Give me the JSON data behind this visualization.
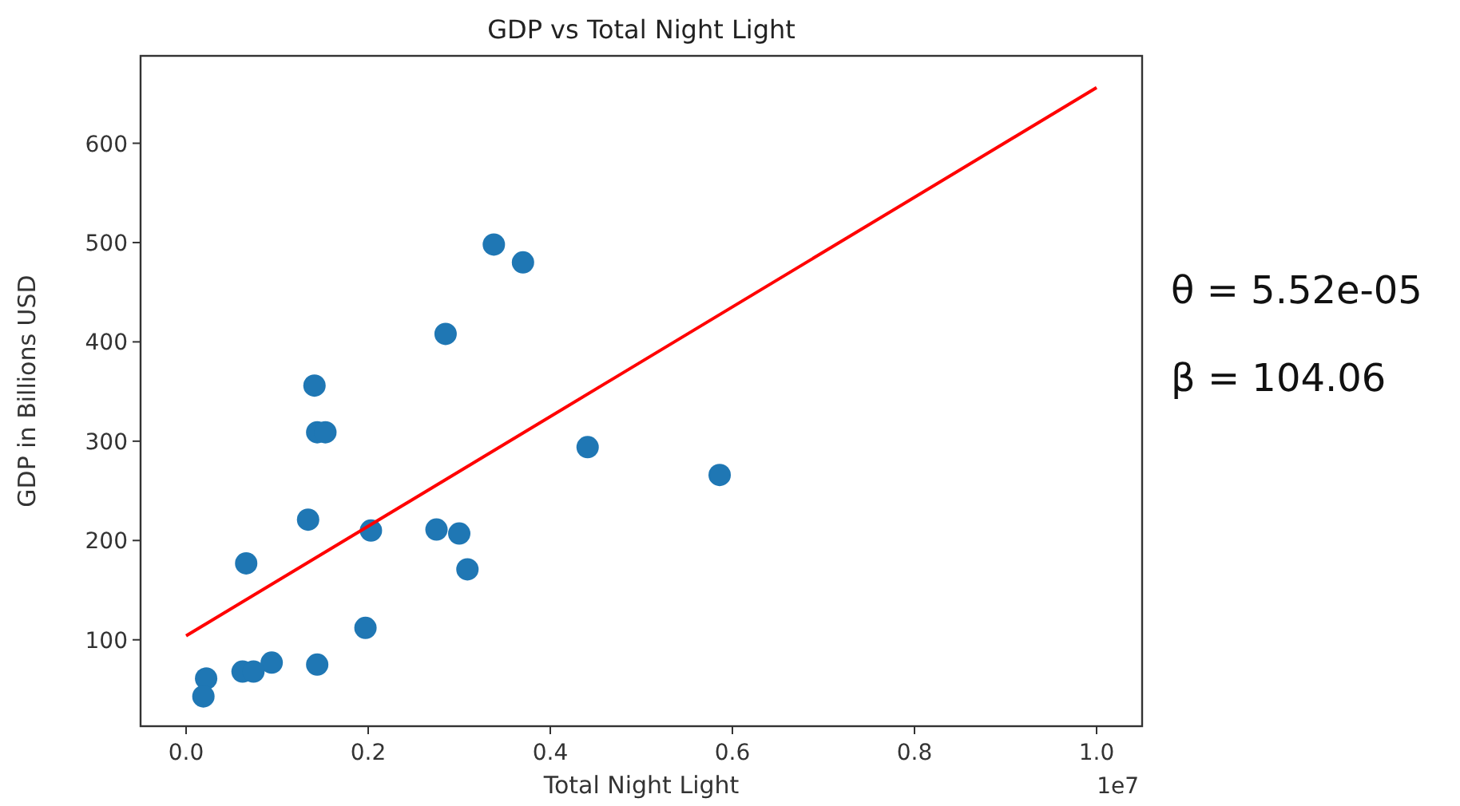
{
  "chart_data": {
    "type": "scatter",
    "title": "GDP vs Total Night Light",
    "xlabel": "Total Night Light",
    "ylabel": "GDP in Billions USD",
    "xlim": [
      -0.05,
      1.05
    ],
    "ylim": [
      13,
      688
    ],
    "xticks": [
      {
        "value": 0,
        "label": "0.0"
      },
      0.2,
      0.4,
      0.6,
      0.8,
      {
        "value": 1,
        "label": "1.0"
      }
    ],
    "yticks": [
      100,
      200,
      300,
      400,
      500,
      600
    ],
    "grid": false,
    "marker": "circle",
    "annotations": [
      "1e7",
      "θ = 5.52e-05",
      "β = 104.06"
    ],
    "series": [
      {
        "type": "scatter",
        "color": "#1f77b4",
        "x": [
          0.338,
          0.37,
          0.285,
          0.141,
          0.144,
          0.153,
          0.134,
          0.203,
          0.275,
          0.3,
          0.309,
          0.066,
          0.197,
          0.094,
          0.144,
          0.062,
          0.074,
          0.022,
          0.019,
          0.441,
          0.586
        ],
        "values": [
          498,
          480,
          408,
          356,
          309,
          309,
          221,
          210,
          211,
          207,
          171,
          177,
          112,
          77,
          75,
          68,
          68,
          61,
          43,
          294,
          266
        ]
      },
      {
        "type": "line",
        "color": "#ff0000",
        "x": [
          0,
          1
        ],
        "values": [
          104,
          656
        ],
        "marker": "none",
        "line_style": "solid"
      }
    ]
  }
}
